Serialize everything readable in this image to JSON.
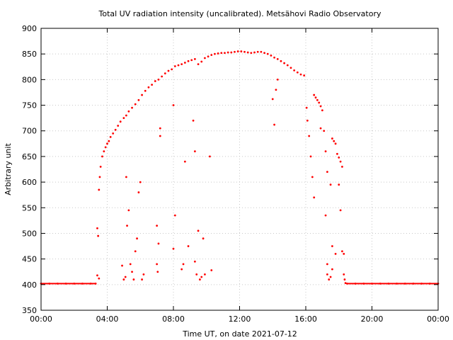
{
  "chart_data": {
    "type": "scatter",
    "title": "Total UV radiation intensity (uncalibrated). Metsähovi Radio Observatory",
    "xlabel": "Time UT, on date 2021-07-12",
    "ylabel": "Arbitrary unit",
    "xlim_hours": [
      0,
      24
    ],
    "ylim": [
      350,
      900
    ],
    "x_tick_hours": [
      0,
      4,
      8,
      12,
      16,
      20,
      24
    ],
    "x_tick_labels": [
      "00:00",
      "04:00",
      "08:00",
      "12:00",
      "16:00",
      "20:00",
      "00:00"
    ],
    "y_ticks": [
      350,
      400,
      450,
      500,
      550,
      600,
      650,
      700,
      750,
      800,
      850,
      900
    ],
    "grid": true,
    "series": [
      {
        "color": "#ff0000",
        "marker": "dot",
        "points": [
          [
            0.0,
            402
          ],
          [
            0.5,
            402
          ],
          [
            1.0,
            402
          ],
          [
            1.5,
            402
          ],
          [
            2.0,
            402
          ],
          [
            2.5,
            402
          ],
          [
            3.0,
            402
          ],
          [
            3.3,
            402
          ],
          [
            3.5,
            585
          ],
          [
            3.55,
            610
          ],
          [
            3.6,
            630
          ],
          [
            3.7,
            650
          ],
          [
            3.8,
            660
          ],
          [
            3.9,
            668
          ],
          [
            4.0,
            675
          ],
          [
            4.1,
            680
          ],
          [
            4.2,
            688
          ],
          [
            4.35,
            695
          ],
          [
            4.5,
            702
          ],
          [
            4.65,
            710
          ],
          [
            4.8,
            718
          ],
          [
            5.0,
            725
          ],
          [
            5.15,
            730
          ],
          [
            5.3,
            738
          ],
          [
            5.5,
            745
          ],
          [
            5.7,
            752
          ],
          [
            5.9,
            760
          ],
          [
            6.1,
            770
          ],
          [
            6.3,
            778
          ],
          [
            6.5,
            785
          ],
          [
            6.7,
            790
          ],
          [
            6.9,
            797
          ],
          [
            7.1,
            800
          ],
          [
            7.3,
            806
          ],
          [
            7.5,
            812
          ],
          [
            7.7,
            817
          ],
          [
            7.9,
            820
          ],
          [
            8.1,
            826
          ],
          [
            8.3,
            828
          ],
          [
            8.5,
            830
          ],
          [
            8.7,
            833
          ],
          [
            8.9,
            836
          ],
          [
            9.1,
            838
          ],
          [
            9.3,
            840
          ],
          [
            9.5,
            830
          ],
          [
            9.7,
            835
          ],
          [
            9.9,
            842
          ],
          [
            10.1,
            845
          ],
          [
            10.3,
            848
          ],
          [
            10.5,
            850
          ],
          [
            10.7,
            851
          ],
          [
            10.9,
            852
          ],
          [
            11.1,
            852
          ],
          [
            11.3,
            853
          ],
          [
            11.5,
            853
          ],
          [
            11.7,
            854
          ],
          [
            11.9,
            855
          ],
          [
            12.1,
            855
          ],
          [
            12.3,
            854
          ],
          [
            12.5,
            853
          ],
          [
            12.7,
            852
          ],
          [
            12.9,
            853
          ],
          [
            13.1,
            854
          ],
          [
            13.3,
            854
          ],
          [
            13.5,
            852
          ],
          [
            13.7,
            850
          ],
          [
            13.9,
            847
          ],
          [
            14.1,
            843
          ],
          [
            14.3,
            840
          ],
          [
            14.5,
            836
          ],
          [
            14.7,
            832
          ],
          [
            14.9,
            828
          ],
          [
            15.1,
            823
          ],
          [
            15.3,
            818
          ],
          [
            15.5,
            814
          ],
          [
            15.7,
            810
          ],
          [
            15.9,
            808
          ],
          [
            16.05,
            745
          ],
          [
            16.1,
            720
          ],
          [
            16.2,
            690
          ],
          [
            16.3,
            650
          ],
          [
            16.4,
            610
          ],
          [
            16.5,
            770
          ],
          [
            16.6,
            765
          ],
          [
            16.7,
            760
          ],
          [
            16.8,
            755
          ],
          [
            16.9,
            748
          ],
          [
            17.0,
            740
          ],
          [
            17.1,
            700
          ],
          [
            17.2,
            660
          ],
          [
            17.3,
            620
          ],
          [
            17.5,
            595
          ],
          [
            17.6,
            685
          ],
          [
            17.7,
            680
          ],
          [
            17.8,
            675
          ],
          [
            17.9,
            655
          ],
          [
            18.0,
            648
          ],
          [
            18.1,
            640
          ],
          [
            18.2,
            630
          ],
          [
            18.3,
            460
          ],
          [
            18.35,
            410
          ],
          [
            18.4,
            403
          ],
          [
            18.5,
            402
          ],
          [
            19.0,
            402
          ],
          [
            19.5,
            402
          ],
          [
            20.0,
            402
          ],
          [
            20.5,
            402
          ],
          [
            21.0,
            402
          ],
          [
            21.5,
            402
          ],
          [
            22.0,
            402
          ],
          [
            22.5,
            402
          ],
          [
            23.0,
            402
          ],
          [
            23.5,
            402
          ],
          [
            24.0,
            402
          ],
          [
            3.4,
            510
          ],
          [
            3.45,
            495
          ],
          [
            3.4,
            418
          ],
          [
            3.5,
            412
          ],
          [
            4.9,
            437
          ],
          [
            5.0,
            410
          ],
          [
            5.1,
            415
          ],
          [
            5.15,
            610
          ],
          [
            5.2,
            515
          ],
          [
            5.3,
            545
          ],
          [
            5.4,
            440
          ],
          [
            5.5,
            425
          ],
          [
            5.6,
            410
          ],
          [
            5.7,
            465
          ],
          [
            5.8,
            490
          ],
          [
            5.9,
            580
          ],
          [
            6.0,
            600
          ],
          [
            6.1,
            410
          ],
          [
            6.2,
            420
          ],
          [
            7.0,
            515
          ],
          [
            7.0,
            440
          ],
          [
            7.05,
            425
          ],
          [
            7.1,
            480
          ],
          [
            7.2,
            690
          ],
          [
            7.2,
            705
          ],
          [
            8.0,
            750
          ],
          [
            8.0,
            470
          ],
          [
            8.1,
            535
          ],
          [
            8.5,
            430
          ],
          [
            8.6,
            440
          ],
          [
            8.7,
            640
          ],
          [
            8.9,
            475
          ],
          [
            9.2,
            720
          ],
          [
            9.3,
            660
          ],
          [
            9.3,
            445
          ],
          [
            9.4,
            420
          ],
          [
            9.5,
            505
          ],
          [
            9.6,
            410
          ],
          [
            9.7,
            415
          ],
          [
            9.8,
            490
          ],
          [
            9.9,
            420
          ],
          [
            10.2,
            650
          ],
          [
            10.3,
            428
          ],
          [
            14.1,
            712
          ],
          [
            14.0,
            762
          ],
          [
            14.2,
            780
          ],
          [
            14.3,
            800
          ],
          [
            16.5,
            570
          ],
          [
            16.9,
            705
          ],
          [
            17.2,
            535
          ],
          [
            17.3,
            440
          ],
          [
            17.3,
            420
          ],
          [
            17.4,
            410
          ],
          [
            17.5,
            415
          ],
          [
            17.6,
            430
          ],
          [
            17.6,
            475
          ],
          [
            17.8,
            460
          ],
          [
            18.0,
            595
          ],
          [
            18.1,
            545
          ],
          [
            18.2,
            465
          ],
          [
            18.3,
            420
          ]
        ]
      }
    ]
  }
}
